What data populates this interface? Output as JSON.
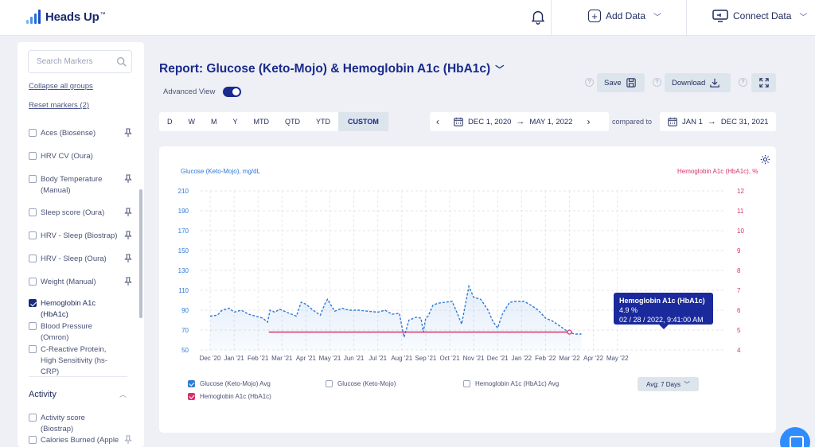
{
  "app": {
    "name": "Heads Up",
    "trademark": "™"
  },
  "header": {
    "add_data": "Add Data",
    "connect_data": "Connect Data"
  },
  "sidebar": {
    "search_placeholder": "Search Markers",
    "collapse_all": "Collapse all groups",
    "reset_markers": "Reset markers (2)",
    "markers": [
      {
        "label": "Aces (Biosense)",
        "checked": false
      },
      {
        "label": "HRV CV (Oura)",
        "checked": false
      },
      {
        "label": "Body Temperature (Manual)",
        "checked": false
      },
      {
        "label": "Sleep score (Oura)",
        "checked": false
      },
      {
        "label": "HRV - Sleep (Biostrap)",
        "checked": false
      },
      {
        "label": "HRV - Sleep (Oura)",
        "checked": false
      },
      {
        "label": "Weight (Manual)",
        "checked": false
      },
      {
        "label": "Hemoglobin A1c (HbA1c)",
        "checked": true
      },
      {
        "label": "Blood Pressure (Omron)",
        "checked": false
      },
      {
        "label": "C-Reactive Protein, High Sensitivity (hs-CRP)",
        "checked": false
      }
    ],
    "group_title": "Activity",
    "activity_markers": [
      {
        "label": "Activity score (Biostrap)",
        "checked": false
      },
      {
        "label": "Calories Burned (Apple",
        "checked": false
      }
    ]
  },
  "report": {
    "title": "Report: Glucose (Keto-Mojo) & Hemoglobin A1c (HbA1c)",
    "advanced_view_label": "Advanced View",
    "advanced_view_on": true,
    "save_label": "Save",
    "download_label": "Download",
    "help_glyph": "?"
  },
  "periods": [
    "D",
    "W",
    "M",
    "Y",
    "MTD",
    "QTD",
    "YTD",
    "CUSTOM"
  ],
  "active_period": "CUSTOM",
  "date_range": {
    "start": "DEC 1, 2020",
    "end": "MAY 1, 2022"
  },
  "compared_to_label": "compared to",
  "compare_range": {
    "start": "JAN 1",
    "end": "DEC 31, 2021"
  },
  "colors": {
    "accent": "#1a2a8c",
    "glucose": "#2f7ad6",
    "hba1c": "#d6336c"
  },
  "legend": {
    "items": [
      "Glucose (Keto-Mojo) Avg",
      "Glucose (Keto-Mojo)",
      "Hemoglobin A1c (HbA1c) Avg",
      "Hemoglobin A1c (HbA1c)"
    ],
    "checked": [
      true,
      false,
      false,
      true
    ],
    "avg_button": "Avg: 7 Days"
  },
  "tooltip": {
    "title": "Hemoglobin A1c (HbA1c)",
    "value": "4.9 %",
    "datetime": "02 / 28 / 2022, 9:41:00 AM"
  },
  "chart_data": {
    "type": "line",
    "ylabel_left": "Glucose (Keto-Mojo), mg/dL",
    "ylabel_right": "Hemoglobin A1c (HbA1c), %",
    "ylim_left": [
      50,
      210
    ],
    "yticks_left": [
      50,
      70,
      90,
      110,
      130,
      150,
      170,
      190,
      210
    ],
    "ylim_right": [
      4,
      12
    ],
    "yticks_right": [
      4,
      5,
      6,
      7,
      8,
      9,
      10,
      11,
      12
    ],
    "x_labels": [
      "Dec '20",
      "Jan '21",
      "Feb '21",
      "Mar '21",
      "Apr '21",
      "May '21",
      "Jun '21",
      "Jul '21",
      "Aug '21",
      "Sep '21",
      "Oct '21",
      "Nov '21",
      "Dec '21",
      "Jan '22",
      "Feb '22",
      "Mar '22",
      "Apr '22",
      "May '22"
    ],
    "grid": true,
    "series": [
      {
        "name": "Glucose (Keto-Mojo) Avg",
        "axis": "left",
        "style": "dashed-area",
        "x": [
          0,
          0.3,
          0.5,
          0.8,
          1.0,
          1.3,
          1.6,
          1.9,
          2.2,
          2.4,
          2.5,
          2.7,
          2.9,
          3.0,
          3.3,
          3.6,
          3.8,
          4.0,
          4.3,
          4.6,
          4.8,
          4.9,
          5.2,
          5.5,
          5.8,
          6.2,
          6.6,
          7.0,
          7.3,
          7.6,
          7.9,
          8.0,
          8.1,
          8.3,
          8.6,
          8.8,
          8.9,
          9.0,
          9.1,
          9.3,
          9.5,
          9.8,
          10.1,
          10.3,
          10.5,
          10.8,
          11.0,
          11.3,
          11.6,
          11.8,
          12.0,
          12.2,
          12.5,
          12.8,
          13.1,
          13.4,
          13.7,
          14.0,
          14.3,
          14.6,
          14.9,
          15.2,
          15.5
        ],
        "y": [
          84,
          85,
          90,
          92,
          88,
          90,
          86,
          84,
          82,
          78,
          90,
          88,
          91,
          90,
          87,
          84,
          98,
          96,
          90,
          85,
          97,
          101,
          89,
          92,
          90,
          90,
          89,
          88,
          90,
          86,
          87,
          74,
          63,
          80,
          83,
          82,
          68,
          82,
          84,
          95,
          97,
          98,
          99,
          88,
          76,
          114,
          103,
          101,
          90,
          79,
          72,
          86,
          98,
          99,
          99,
          95,
          90,
          82,
          79,
          74,
          69,
          66,
          66
        ]
      },
      {
        "name": "Hemoglobin A1c (HbA1c)",
        "axis": "right",
        "style": "solid",
        "x": [
          2.45,
          15.0
        ],
        "y": [
          4.9,
          4.9
        ]
      }
    ]
  }
}
